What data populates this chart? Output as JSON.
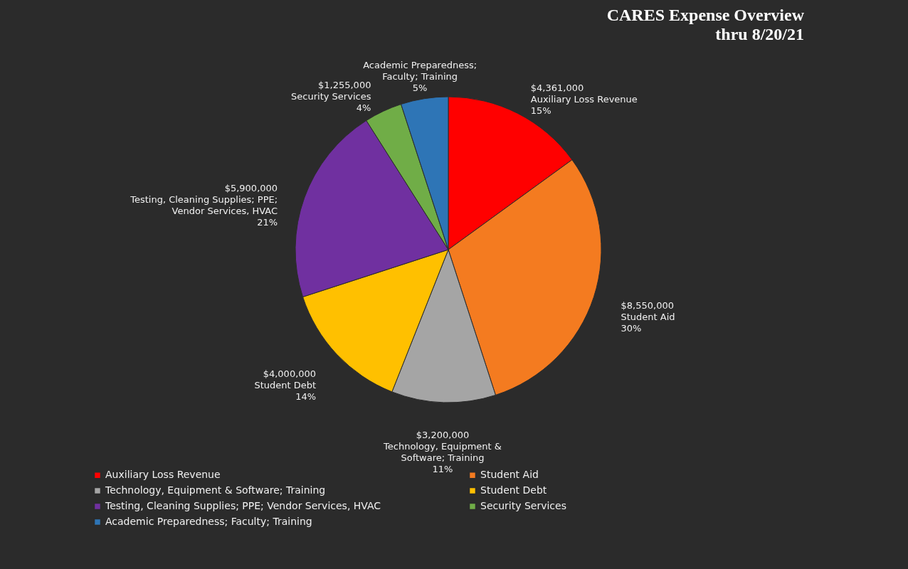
{
  "chart_data": {
    "type": "pie",
    "title": "CARES Expense Overview",
    "subtitle": "thru 8/20/21",
    "categories": [
      "Auxiliary Loss Revenue",
      "Student Aid",
      "Technology, Equipment & Software; Training",
      "Student Debt",
      "Testing, Cleaning Supplies; PPE; Vendor Services, HVAC",
      "Security Services",
      "Academic Preparedness; Faculty; Training"
    ],
    "values": [
      15,
      30,
      11,
      14,
      21,
      4,
      5
    ],
    "colors": [
      "#ff0000",
      "#f47b20",
      "#a5a5a5",
      "#ffc000",
      "#7030a0",
      "#70ad47",
      "#2e75b6"
    ],
    "value_labels": [
      "$4,361,000\nAuxiliary Loss Revenue\n15%",
      "$8,550,000\nStudent Aid\n30%",
      "$3,200,000\nTechnology, Equipment &\nSoftware; Training\n11%",
      "$4,000,000\nStudent Debt\n14%",
      "$5,900,000\nTesting, Cleaning Supplies; PPE;\nVendor Services, HVAC\n21%",
      "$1,255,000\nSecurity Services\n4%",
      "Academic Preparedness;\nFaculty; Training\n5%"
    ],
    "legend": "bottom"
  }
}
